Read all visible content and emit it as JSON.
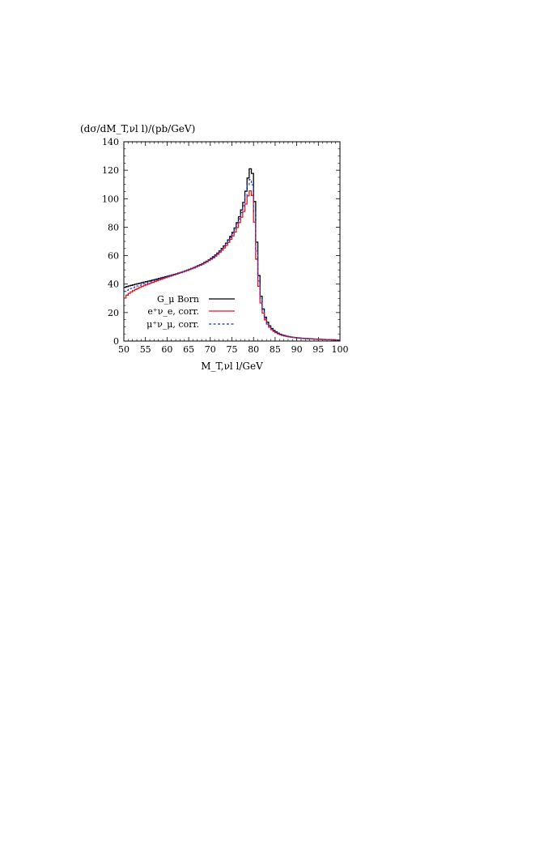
{
  "chart_data": {
    "type": "line",
    "title": "",
    "ylabel": "(dσ/dM_T,νl l)/(pb/GeV)",
    "xlabel": "M_T,νl l/GeV",
    "xlim": [
      50,
      100
    ],
    "ylim": [
      0,
      140
    ],
    "xticks": [
      50,
      55,
      60,
      65,
      70,
      75,
      80,
      85,
      90,
      95,
      100
    ],
    "yticks": [
      0,
      20,
      40,
      60,
      80,
      100,
      120,
      140
    ],
    "grid": false,
    "legend_position": "center-left",
    "bin_width": 0.5,
    "series": [
      {
        "name": "G_μ Born",
        "color": "#000000",
        "style": "solid",
        "values": [
          [
            50,
            37.5
          ],
          [
            51,
            38.5
          ],
          [
            52,
            39.3
          ],
          [
            53,
            40.1
          ],
          [
            54,
            40.8
          ],
          [
            55,
            41.6
          ],
          [
            56,
            42.3
          ],
          [
            57,
            43.0
          ],
          [
            58,
            43.8
          ],
          [
            59,
            44.6
          ],
          [
            60,
            45.4
          ],
          [
            61,
            46.2
          ],
          [
            62,
            47.1
          ],
          [
            63,
            48.0
          ],
          [
            64,
            49.0
          ],
          [
            65,
            50.1
          ],
          [
            66,
            51.3
          ],
          [
            67,
            52.6
          ],
          [
            68,
            54.0
          ],
          [
            69,
            55.7
          ],
          [
            70,
            57.5
          ],
          [
            71,
            59.8
          ],
          [
            72,
            62.5
          ],
          [
            73,
            65.8
          ],
          [
            74,
            69.8
          ],
          [
            75,
            74.8
          ],
          [
            76,
            81.0
          ],
          [
            77,
            89.5
          ],
          [
            78,
            100.0
          ],
          [
            78.5,
            110.5
          ],
          [
            79,
            118.5
          ],
          [
            79.5,
            123.5
          ],
          [
            80,
            112.0
          ],
          [
            80.5,
            84.0
          ],
          [
            81,
            55.0
          ],
          [
            81.5,
            37.0
          ],
          [
            82,
            26.0
          ],
          [
            82.5,
            19.0
          ],
          [
            83,
            14.5
          ],
          [
            84,
            9.5
          ],
          [
            85,
            6.8
          ],
          [
            86,
            5.1
          ],
          [
            87,
            4.0
          ],
          [
            88,
            3.2
          ],
          [
            90,
            2.3
          ],
          [
            92,
            1.8
          ],
          [
            95,
            1.3
          ],
          [
            98,
            0.9
          ],
          [
            100,
            0.7
          ]
        ]
      },
      {
        "name": "e⁺ν_e, corr.",
        "color": "#e8151b",
        "style": "solid",
        "values": [
          [
            50,
            29.0
          ],
          [
            50.5,
            31.5
          ],
          [
            51,
            33.0
          ],
          [
            52,
            35.0
          ],
          [
            53,
            36.6
          ],
          [
            54,
            38.0
          ],
          [
            55,
            39.2
          ],
          [
            56,
            40.4
          ],
          [
            57,
            41.5
          ],
          [
            58,
            42.6
          ],
          [
            59,
            43.7
          ],
          [
            60,
            44.8
          ],
          [
            61,
            45.8
          ],
          [
            62,
            46.8
          ],
          [
            63,
            47.8
          ],
          [
            64,
            48.8
          ],
          [
            65,
            49.9
          ],
          [
            66,
            51.0
          ],
          [
            67,
            52.3
          ],
          [
            68,
            53.6
          ],
          [
            69,
            55.2
          ],
          [
            70,
            57.0
          ],
          [
            71,
            59.0
          ],
          [
            72,
            61.5
          ],
          [
            73,
            64.5
          ],
          [
            74,
            68.2
          ],
          [
            75,
            72.5
          ],
          [
            76,
            78.0
          ],
          [
            77,
            85.0
          ],
          [
            78,
            93.0
          ],
          [
            78.5,
            99.5
          ],
          [
            79,
            104.5
          ],
          [
            79.5,
            106.5
          ],
          [
            80,
            98.0
          ],
          [
            80.5,
            69.0
          ],
          [
            81,
            46.0
          ],
          [
            81.5,
            31.0
          ],
          [
            82,
            22.5
          ],
          [
            82.5,
            16.8
          ],
          [
            83,
            13.0
          ],
          [
            84,
            8.6
          ],
          [
            85,
            6.2
          ],
          [
            86,
            4.7
          ],
          [
            87,
            3.7
          ],
          [
            88,
            3.0
          ],
          [
            90,
            2.2
          ],
          [
            92,
            1.7
          ],
          [
            95,
            1.2
          ],
          [
            98,
            0.9
          ],
          [
            100,
            0.7
          ]
        ]
      },
      {
        "name": "μ⁺ν_μ, corr.",
        "color": "#1a2fd6",
        "style": "dashed",
        "values": [
          [
            50,
            34.5
          ],
          [
            51,
            36.0
          ],
          [
            52,
            37.3
          ],
          [
            53,
            38.4
          ],
          [
            54,
            39.4
          ],
          [
            55,
            40.4
          ],
          [
            56,
            41.4
          ],
          [
            57,
            42.3
          ],
          [
            58,
            43.3
          ],
          [
            59,
            44.2
          ],
          [
            60,
            45.1
          ],
          [
            61,
            46.0
          ],
          [
            62,
            47.0
          ],
          [
            63,
            47.9
          ],
          [
            64,
            48.9
          ],
          [
            65,
            50.0
          ],
          [
            66,
            51.2
          ],
          [
            67,
            52.5
          ],
          [
            68,
            53.9
          ],
          [
            69,
            55.5
          ],
          [
            70,
            57.3
          ],
          [
            71,
            59.5
          ],
          [
            72,
            62.1
          ],
          [
            73,
            65.3
          ],
          [
            74,
            69.2
          ],
          [
            75,
            74.0
          ],
          [
            76,
            80.0
          ],
          [
            77,
            87.8
          ],
          [
            78,
            97.5
          ],
          [
            78.5,
            106.0
          ],
          [
            79,
            112.5
          ],
          [
            79.5,
            114.5
          ],
          [
            80,
            105.0
          ],
          [
            80.5,
            76.0
          ],
          [
            81,
            50.5
          ],
          [
            81.5,
            34.0
          ],
          [
            82,
            24.3
          ],
          [
            82.5,
            18.0
          ],
          [
            83,
            13.8
          ],
          [
            84,
            9.1
          ],
          [
            85,
            6.5
          ],
          [
            86,
            4.9
          ],
          [
            87,
            3.9
          ],
          [
            88,
            3.1
          ],
          [
            90,
            2.25
          ],
          [
            92,
            1.75
          ],
          [
            95,
            1.25
          ],
          [
            98,
            0.9
          ],
          [
            100,
            0.7
          ]
        ]
      }
    ]
  }
}
